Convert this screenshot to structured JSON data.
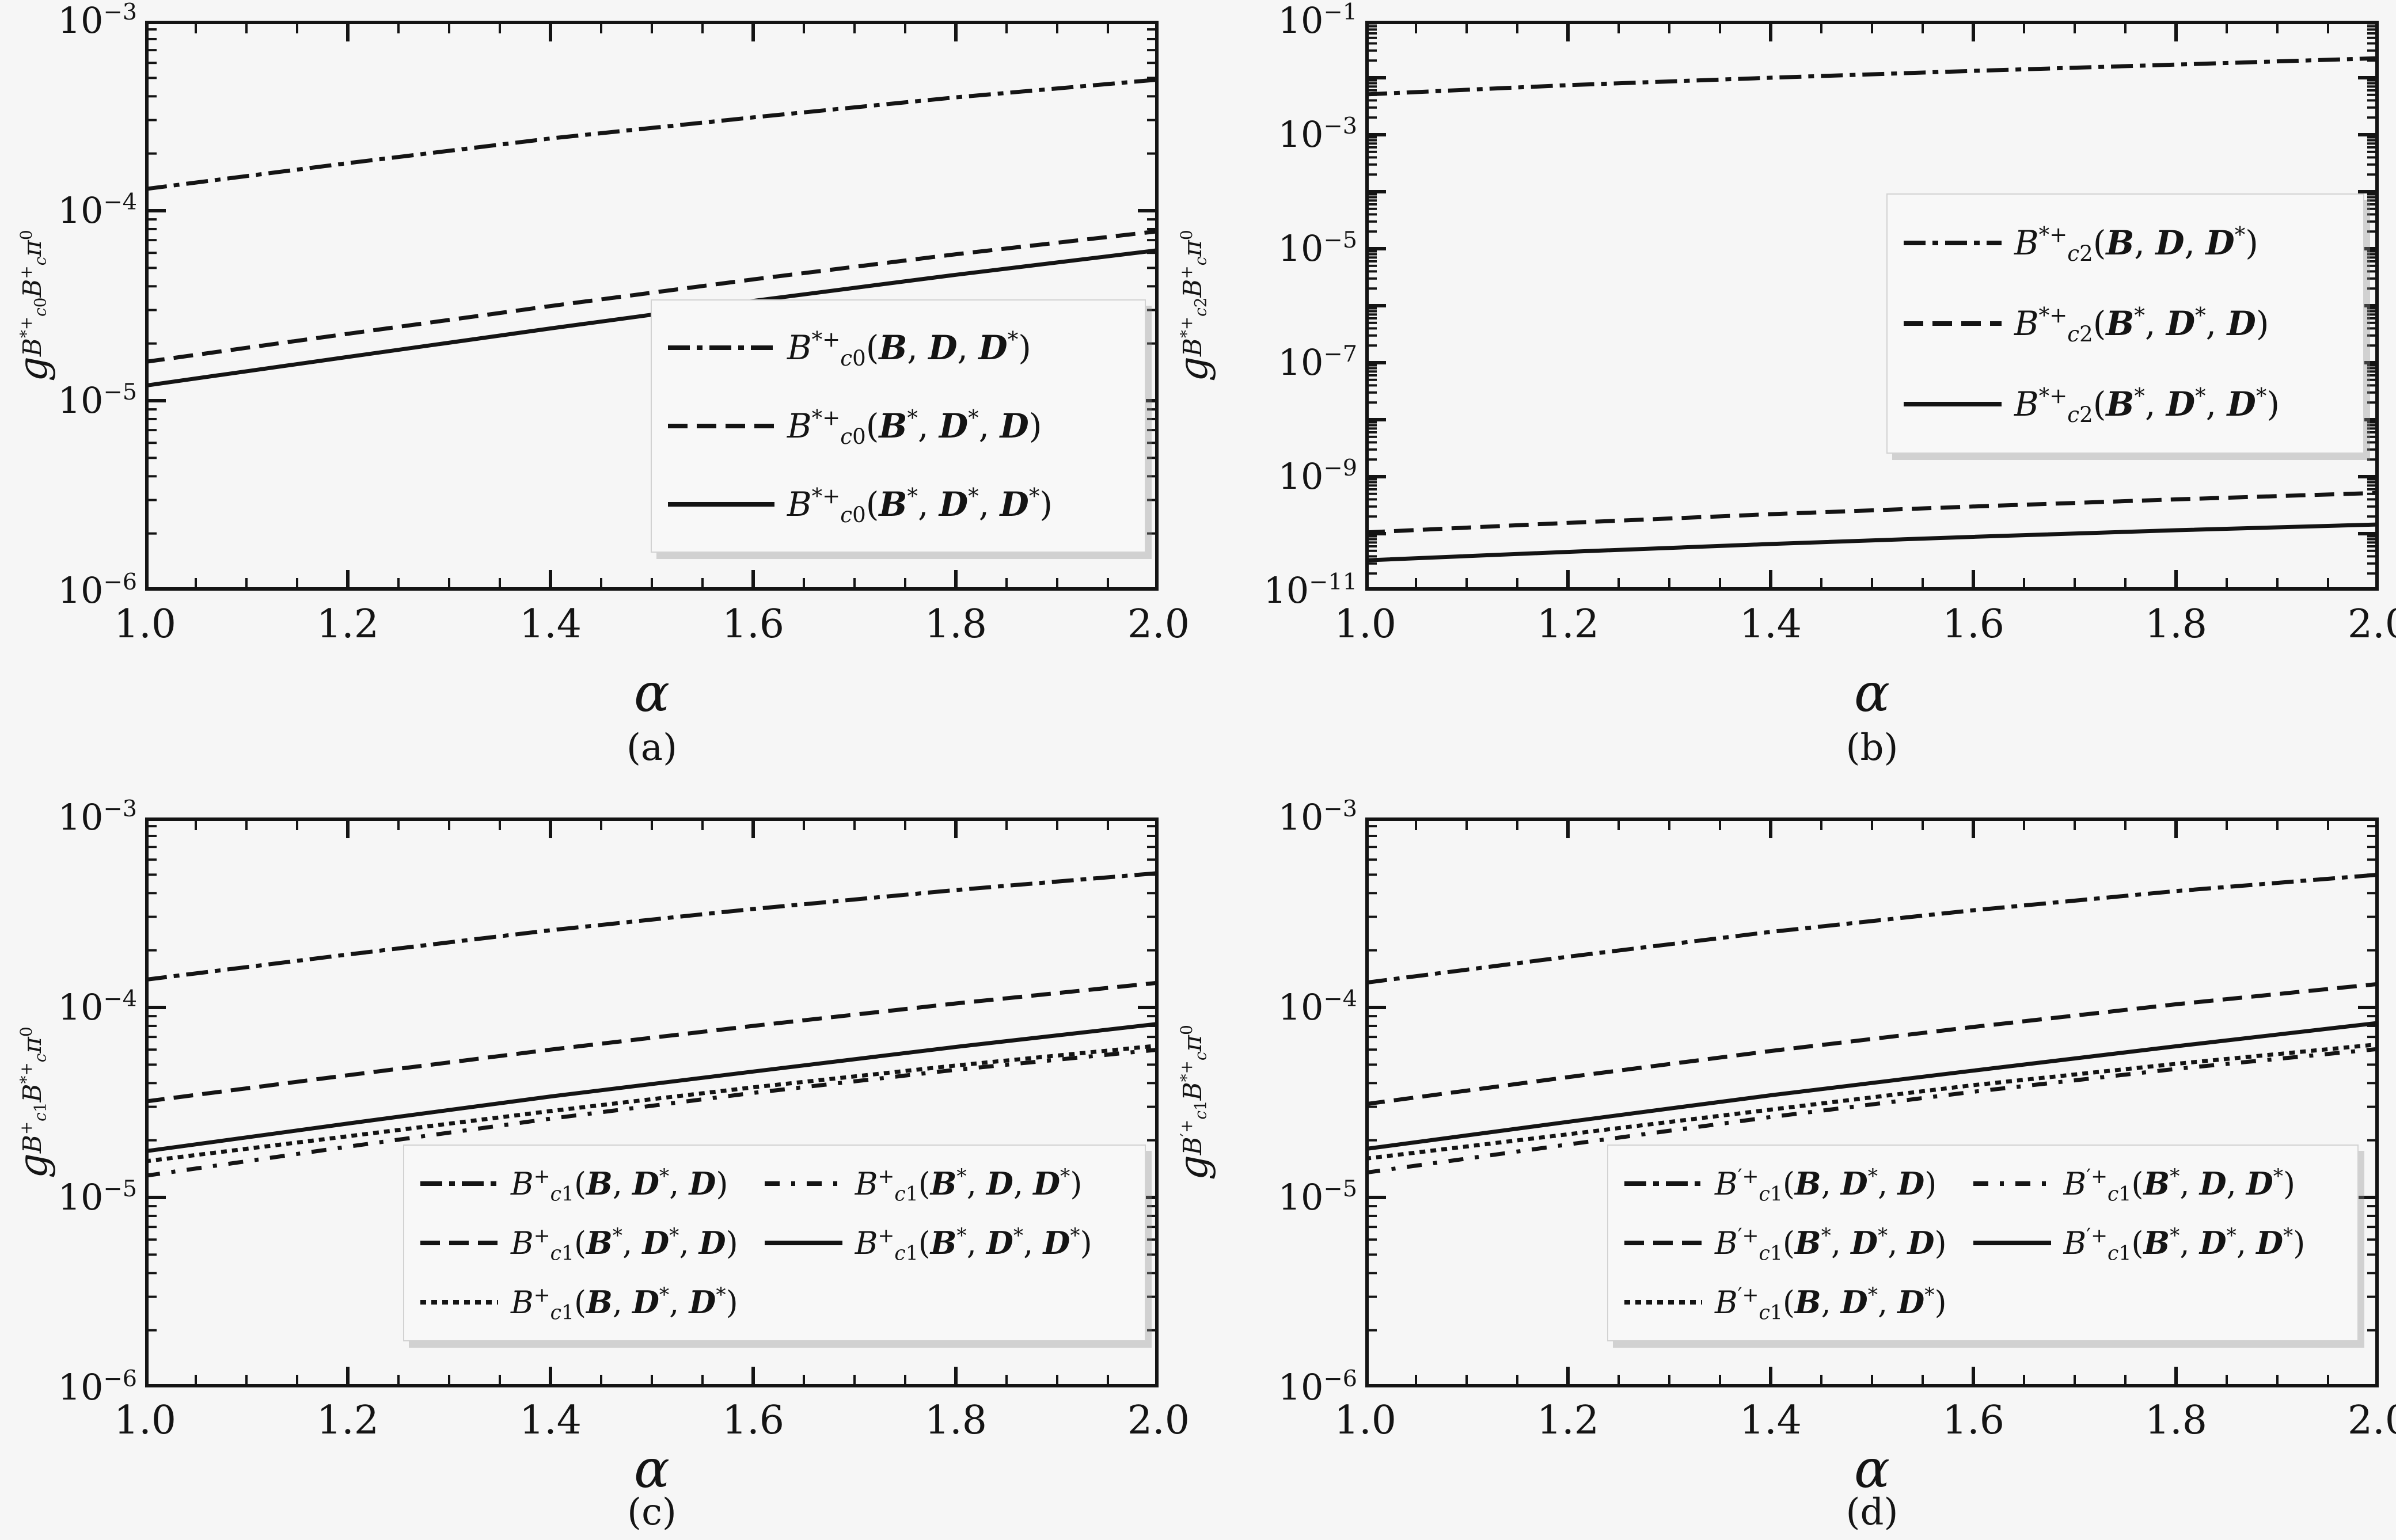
{
  "figure": {
    "background": "#f6f6f6",
    "ink": "#141414"
  },
  "chart_data": {
    "type": "line",
    "x_axis_shared": {
      "label": "α",
      "min": 1.0,
      "max": 2.0,
      "major_tick_step": 0.2,
      "minor_tick_step": 0.05,
      "tick_labels": [
        "1.0",
        "1.2",
        "1.4",
        "1.6",
        "1.8",
        "2.0"
      ]
    },
    "panels": [
      {
        "id": "a",
        "caption": "(a)",
        "xlabel": "α",
        "ylabel": "g_{B^{*+}_{c0}B^{+}_{c}π^{0}}",
        "x": [
          1.0,
          1.2,
          1.4,
          1.6,
          1.8,
          2.0
        ],
        "y_axis": {
          "scale": "log",
          "top_exponent": -3,
          "bottom_exponent": -6,
          "labels": [
            {
              "exponent": -3,
              "text": "10^{−3}"
            },
            {
              "exponent": -4,
              "text": "10^{−4}"
            },
            {
              "exponent": -5,
              "text": "10^{−5}"
            },
            {
              "exponent": -6,
              "text": "10^{−6}"
            }
          ]
        },
        "series": [
          {
            "label": "B^{*+}_{c0}(ℬ, 𝒟, 𝒟^{*})",
            "style": "dashdot",
            "y": [
              0.00013,
              0.000178,
              0.00024,
              0.00031,
              0.000395,
              0.00049
            ]
          },
          {
            "label": "B^{*+}_{c0}(ℬ^{*}, 𝒟^{*}, 𝒟)",
            "style": "dashed",
            "y": [
              1.6e-05,
              2.25e-05,
              3.15e-05,
              4.35e-05,
              5.9e-05,
              7.8e-05
            ]
          },
          {
            "label": "B^{*+}_{c0}(ℬ^{*}, 𝒟^{*}, 𝒟^{*})",
            "style": "solid",
            "y": [
              1.2e-05,
              1.7e-05,
              2.4e-05,
              3.35e-05,
              4.6e-05,
              6.2e-05
            ]
          }
        ],
        "legend": {
          "columns": 1,
          "entries": [
            {
              "style": "dashdot",
              "label": "B^{*+}_{c0}(ℬ, 𝒟, 𝒟^{*})"
            },
            {
              "style": "dashed",
              "label": "B^{*+}_{c0}(ℬ^{*}, 𝒟^{*}, 𝒟)"
            },
            {
              "style": "solid",
              "label": "B^{*+}_{c0}(ℬ^{*}, 𝒟^{*}, 𝒟^{*})"
            }
          ]
        }
      },
      {
        "id": "b",
        "caption": "(b)",
        "xlabel": "α",
        "ylabel": "g_{B^{*+}_{c2}B^{+}_{c}π^{0}}",
        "x": [
          1.0,
          1.2,
          1.4,
          1.6,
          1.8,
          2.0
        ],
        "y_axis": {
          "scale": "log",
          "top_exponent": -1,
          "bottom_exponent": -11,
          "labels": [
            {
              "exponent": -1,
              "text": "10^{−1}"
            },
            {
              "exponent": -3,
              "text": "10^{−3}"
            },
            {
              "exponent": -5,
              "text": "10^{−5}"
            },
            {
              "exponent": -7,
              "text": "10^{−7}"
            },
            {
              "exponent": -9,
              "text": "10^{−9}"
            },
            {
              "exponent": -11,
              "text": "10^{−11}"
            }
          ]
        },
        "series": [
          {
            "label": "B^{*+}_{c2}(ℬ, 𝒟, 𝒟^{*})",
            "style": "dashdot",
            "y": [
              0.0051,
              0.0074,
              0.01,
              0.0132,
              0.017,
              0.022
            ]
          },
          {
            "label": "B^{*+}_{c2}(ℬ^{*}, 𝒟^{*}, 𝒟)",
            "style": "dashed",
            "y": [
              1.05e-10,
              1.55e-10,
              2.2e-10,
              3e-10,
              4e-10,
              5.2e-10
            ]
          },
          {
            "label": "B^{*+}_{c2}(ℬ^{*}, 𝒟^{*}, 𝒟^{*})",
            "style": "solid",
            "y": [
              3.4e-11,
              4.8e-11,
              6.6e-11,
              8.8e-11,
              1.15e-10,
              1.45e-10
            ]
          }
        ],
        "legend": {
          "columns": 1,
          "entries": [
            {
              "style": "dashdot",
              "label": "B^{*+}_{c2}(ℬ, 𝒟, 𝒟^{*})"
            },
            {
              "style": "dashed",
              "label": "B^{*+}_{c2}(ℬ^{*}, 𝒟^{*}, 𝒟)"
            },
            {
              "style": "solid",
              "label": "B^{*+}_{c2}(ℬ^{*}, 𝒟^{*}, 𝒟^{*})"
            }
          ]
        }
      },
      {
        "id": "c",
        "caption": "(c)",
        "xlabel": "α",
        "ylabel": "g_{B^{+}_{c1}B^{*+}_{c}π^{0}}",
        "x": [
          1.0,
          1.2,
          1.4,
          1.6,
          1.8,
          2.0
        ],
        "y_axis": {
          "scale": "log",
          "top_exponent": -3,
          "bottom_exponent": -6,
          "labels": [
            {
              "exponent": -3,
              "text": "10^{−3}"
            },
            {
              "exponent": -4,
              "text": "10^{−4}"
            },
            {
              "exponent": -5,
              "text": "10^{−5}"
            },
            {
              "exponent": -6,
              "text": "10^{−6}"
            }
          ]
        },
        "series": [
          {
            "label": "B^{+}_{c1}(ℬ, 𝒟^{*}, 𝒟)",
            "style": "dashdot",
            "y": [
              0.00014,
              0.00019,
              0.000255,
              0.00033,
              0.000415,
              0.00051
            ]
          },
          {
            "label": "B^{+}_{c1}(ℬ^{*}, 𝒟^{*}, 𝒟)",
            "style": "dashed",
            "y": [
              3.2e-05,
              4.4e-05,
              6e-05,
              8e-05,
              0.000105,
              0.000135
            ]
          },
          {
            "label": "B^{+}_{c1}(ℬ, 𝒟^{*}, 𝒟^{*})",
            "style": "dotted",
            "y": [
              1.55e-05,
              2.1e-05,
              2.85e-05,
              3.8e-05,
              4.95e-05,
              6.3e-05
            ]
          },
          {
            "label": "B^{+}_{c1}(ℬ^{*}, 𝒟, 𝒟^{*})",
            "style": "loose-dashdot",
            "y": [
              1.3e-05,
              1.85e-05,
              2.6e-05,
              3.55e-05,
              4.7e-05,
              6e-05
            ]
          },
          {
            "label": "B^{+}_{c1}(ℬ^{*}, 𝒟^{*}, 𝒟^{*})",
            "style": "solid",
            "y": [
              1.75e-05,
              2.45e-05,
              3.4e-05,
              4.6e-05,
              6.2e-05,
              8.2e-05
            ]
          }
        ],
        "legend": {
          "columns": 2,
          "entries": [
            {
              "style": "dashdot",
              "label": "B^{+}_{c1}(ℬ, 𝒟^{*}, 𝒟)"
            },
            {
              "style": "dashed",
              "label": "B^{+}_{c1}(ℬ^{*}, 𝒟^{*}, 𝒟)"
            },
            {
              "style": "dotted",
              "label": "B^{+}_{c1}(ℬ, 𝒟^{*}, 𝒟^{*})"
            },
            {
              "style": "loose-dashdot",
              "label": "B^{+}_{c1}(ℬ^{*}, 𝒟, 𝒟^{*})"
            },
            {
              "style": "solid",
              "label": "B^{+}_{c1}(ℬ^{*}, 𝒟^{*}, 𝒟^{*})"
            }
          ]
        }
      },
      {
        "id": "d",
        "caption": "(d)",
        "xlabel": "α",
        "ylabel": "g_{B^{′+}_{c1}B^{*+}_{c}π^{0}}",
        "x": [
          1.0,
          1.2,
          1.4,
          1.6,
          1.8,
          2.0
        ],
        "y_axis": {
          "scale": "log",
          "top_exponent": -3,
          "bottom_exponent": -6,
          "labels": [
            {
              "exponent": -3,
              "text": "10^{−3}"
            },
            {
              "exponent": -4,
              "text": "10^{−4}"
            },
            {
              "exponent": -5,
              "text": "10^{−5}"
            },
            {
              "exponent": -6,
              "text": "10^{−6}"
            }
          ]
        },
        "series": [
          {
            "label": "B^{′+}_{c1}(ℬ, 𝒟^{*}, 𝒟)",
            "style": "dashdot",
            "y": [
              0.000135,
              0.000185,
              0.00025,
              0.000325,
              0.00041,
              0.0005
            ]
          },
          {
            "label": "B^{′+}_{c1}(ℬ^{*}, 𝒟^{*}, 𝒟)",
            "style": "dashed",
            "y": [
              3.1e-05,
              4.3e-05,
              5.9e-05,
              7.9e-05,
              0.000104,
              0.000133
            ]
          },
          {
            "label": "B^{′+}_{c1}(ℬ, 𝒟^{*}, 𝒟^{*})",
            "style": "dotted",
            "y": [
              1.6e-05,
              2.15e-05,
              2.9e-05,
              3.9e-05,
              5.05e-05,
              6.4e-05
            ]
          },
          {
            "label": "B^{′+}_{c1}(ℬ^{*}, 𝒟, 𝒟^{*})",
            "style": "loose-dashdot",
            "y": [
              1.35e-05,
              1.9e-05,
              2.65e-05,
              3.6e-05,
              4.75e-05,
              6.05e-05
            ]
          },
          {
            "label": "B^{′+}_{c1}(ℬ^{*}, 𝒟^{*}, 𝒟^{*})",
            "style": "solid",
            "y": [
              1.8e-05,
              2.5e-05,
              3.45e-05,
              4.65e-05,
              6.25e-05,
              8.3e-05
            ]
          }
        ],
        "legend": {
          "columns": 2,
          "entries": [
            {
              "style": "dashdot",
              "label": "B^{′+}_{c1}(ℬ, 𝒟^{*}, 𝒟)"
            },
            {
              "style": "dashed",
              "label": "B^{′+}_{c1}(ℬ^{*}, 𝒟^{*}, 𝒟)"
            },
            {
              "style": "dotted",
              "label": "B^{′+}_{c1}(ℬ, 𝒟^{*}, 𝒟^{*})"
            },
            {
              "style": "loose-dashdot",
              "label": "B^{′+}_{c1}(ℬ^{*}, 𝒟, 𝒟^{*})"
            },
            {
              "style": "solid",
              "label": "B^{′+}_{c1}(ℬ^{*}, 𝒟^{*}, 𝒟^{*})"
            }
          ]
        }
      }
    ]
  }
}
